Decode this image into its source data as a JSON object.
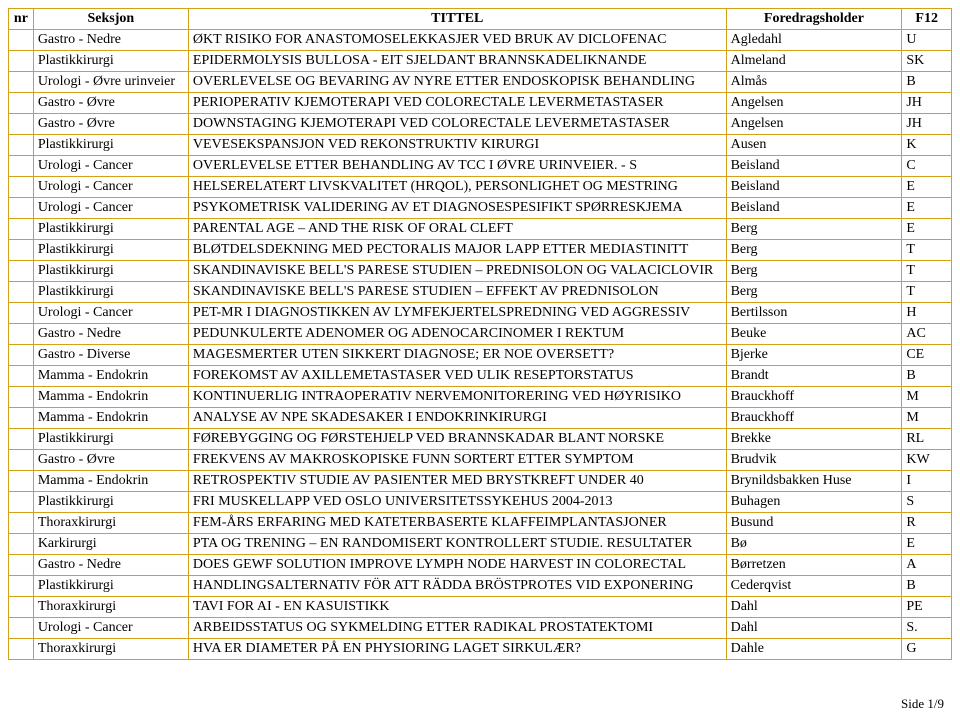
{
  "border_color": "#d4a017",
  "columns": [
    "nr",
    "Seksjon",
    "TITTEL",
    "Foredragsholder",
    "F12"
  ],
  "rows": [
    {
      "nr": "",
      "seksjon": "Gastro - Nedre",
      "tittel": "ØKT RISIKO FOR ANASTOMOSELEKKASJER VED BRUK AV DICLOFENAC",
      "foredrag": "Agledahl",
      "f12": "U"
    },
    {
      "nr": "",
      "seksjon": "Plastikkirurgi",
      "tittel": "EPIDERMOLYSIS BULLOSA - EIT SJELDANT BRANNSKADELIKNANDE",
      "foredrag": "Almeland",
      "f12": "SK"
    },
    {
      "nr": "",
      "seksjon": "Urologi - Øvre urinveier",
      "tittel": "OVERLEVELSE OG BEVARING AV NYRE ETTER ENDOSKOPISK BEHANDLING",
      "foredrag": "Almås",
      "f12": "B"
    },
    {
      "nr": "",
      "seksjon": "Gastro - Øvre",
      "tittel": "PERIOPERATIV KJEMOTERAPI VED COLORECTALE LEVERMETASTASER",
      "foredrag": "Angelsen",
      "f12": "JH"
    },
    {
      "nr": "",
      "seksjon": "Gastro - Øvre",
      "tittel": "DOWNSTAGING KJEMOTERAPI VED COLORECTALE LEVERMETASTASER",
      "foredrag": "Angelsen",
      "f12": "JH"
    },
    {
      "nr": "",
      "seksjon": "Plastikkirurgi",
      "tittel": "VEVESEKSPANSJON VED REKONSTRUKTIV KIRURGI",
      "foredrag": "Ausen",
      "f12": "K"
    },
    {
      "nr": "",
      "seksjon": "Urologi - Cancer",
      "tittel": "OVERLEVELSE ETTER BEHANDLING AV TCC I ØVRE URINVEIER. - S",
      "foredrag": "Beisland",
      "f12": "C"
    },
    {
      "nr": "",
      "seksjon": "Urologi - Cancer",
      "tittel": "HELSERELATERT LIVSKVALITET (HRQOL), PERSONLIGHET OG MESTRING",
      "foredrag": "Beisland",
      "f12": "E"
    },
    {
      "nr": "",
      "seksjon": "Urologi - Cancer",
      "tittel": "PSYKOMETRISK VALIDERING AV ET DIAGNOSESPESIFIKT SPØRRESKJEMA",
      "foredrag": "Beisland",
      "f12": "E"
    },
    {
      "nr": "",
      "seksjon": "Plastikkirurgi",
      "tittel": "PARENTAL AGE – AND THE RISK OF ORAL CLEFT",
      "foredrag": "Berg",
      "f12": "E"
    },
    {
      "nr": "",
      "seksjon": "Plastikkirurgi",
      "tittel": "BLØTDELSDEKNING MED PECTORALIS MAJOR LAPP ETTER MEDIASTINITT",
      "foredrag": "Berg",
      "f12": "T"
    },
    {
      "nr": "",
      "seksjon": "Plastikkirurgi",
      "tittel": "SKANDINAVISKE BELL'S PARESE STUDIEN – PREDNISOLON OG VALACICLOVIR",
      "foredrag": "Berg",
      "f12": "T"
    },
    {
      "nr": "",
      "seksjon": "Plastikkirurgi",
      "tittel": "SKANDINAVISKE BELL'S PARESE STUDIEN – EFFEKT AV PREDNISOLON",
      "foredrag": "Berg",
      "f12": "T"
    },
    {
      "nr": "",
      "seksjon": "Urologi - Cancer",
      "tittel": "PET-MR I DIAGNOSTIKKEN AV LYMFEKJERTELSPREDNING VED AGGRESSIV",
      "foredrag": "Bertilsson",
      "f12": "H"
    },
    {
      "nr": "",
      "seksjon": "Gastro - Nedre",
      "tittel": "PEDUNKULERTE ADENOMER OG ADENOCARCINOMER I REKTUM",
      "foredrag": "Beuke",
      "f12": "AC"
    },
    {
      "nr": "",
      "seksjon": "Gastro - Diverse",
      "tittel": "MAGESMERTER UTEN SIKKERT DIAGNOSE; ER NOE OVERSETT?",
      "foredrag": "Bjerke",
      "f12": "CE"
    },
    {
      "nr": "",
      "seksjon": "Mamma - Endokrin",
      "tittel": "FOREKOMST AV AXILLEMETASTASER VED ULIK RESEPTORSTATUS",
      "foredrag": "Brandt",
      "f12": "B"
    },
    {
      "nr": "",
      "seksjon": "Mamma - Endokrin",
      "tittel": "KONTINUERLIG INTRAOPERATIV NERVEMONITORERING VED HØYRISIKO",
      "foredrag": "Brauckhoff",
      "f12": "M"
    },
    {
      "nr": "",
      "seksjon": "Mamma - Endokrin",
      "tittel": "ANALYSE AV NPE SKADESAKER I ENDOKRINKIRURGI",
      "foredrag": "Brauckhoff",
      "f12": "M"
    },
    {
      "nr": "",
      "seksjon": "Plastikkirurgi",
      "tittel": "FØREBYGGING OG FØRSTEHJELP VED BRANNSKADAR BLANT NORSKE",
      "foredrag": "Brekke",
      "f12": "RL"
    },
    {
      "nr": "",
      "seksjon": "Gastro - Øvre",
      "tittel": "FREKVENS AV MAKROSKOPISKE FUNN SORTERT ETTER SYMPTOM",
      "foredrag": "Brudvik",
      "f12": "KW"
    },
    {
      "nr": "",
      "seksjon": "Mamma - Endokrin",
      "tittel": "RETROSPEKTIV STUDIE AV PASIENTER MED BRYSTKREFT UNDER 40",
      "foredrag": "Brynildsbakken Huse",
      "f12": "I"
    },
    {
      "nr": "",
      "seksjon": "Plastikkirurgi",
      "tittel": "FRI MUSKELLAPP VED OSLO UNIVERSITETSSYKEHUS 2004-2013",
      "foredrag": "Buhagen",
      "f12": "S"
    },
    {
      "nr": "",
      "seksjon": "Thoraxkirurgi",
      "tittel": "FEM-ÅRS ERFARING MED KATETERBASERTE KLAFFEIMPLANTASJONER",
      "foredrag": "Busund",
      "f12": "R"
    },
    {
      "nr": "",
      "seksjon": "Karkirurgi",
      "tittel": "PTA OG TRENING – EN RANDOMISERT KONTROLLERT STUDIE. RESULTATER",
      "foredrag": "Bø",
      "f12": "E"
    },
    {
      "nr": "",
      "seksjon": "Gastro - Nedre",
      "tittel": "DOES GEWF SOLUTION IMPROVE LYMPH NODE HARVEST IN COLORECTAL",
      "foredrag": "Børretzen",
      "f12": "A"
    },
    {
      "nr": "",
      "seksjon": "Plastikkirurgi",
      "tittel": "HANDLINGSALTERNATIV FÖR ATT RÄDDA BRÖSTPROTES VID EXPONERING",
      "foredrag": "Cederqvist",
      "f12": "B"
    },
    {
      "nr": "",
      "seksjon": "Thoraxkirurgi",
      "tittel": "TAVI FOR AI - EN KASUISTIKK",
      "foredrag": "Dahl",
      "f12": "PE"
    },
    {
      "nr": "",
      "seksjon": "Urologi - Cancer",
      "tittel": "ARBEIDSSTATUS OG SYKMELDING ETTER RADIKAL PROSTATEKTOMI",
      "foredrag": "Dahl",
      "f12": "S."
    },
    {
      "nr": "",
      "seksjon": "Thoraxkirurgi",
      "tittel": "HVA ER DIAMETER PÅ EN PHYSIORING LAGET SIRKULÆR?",
      "foredrag": "Dahle",
      "f12": "G"
    }
  ],
  "footer": "Side 1/9"
}
